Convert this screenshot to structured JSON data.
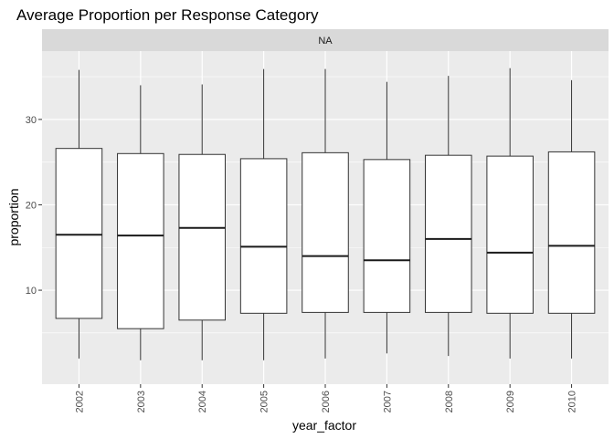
{
  "chart_data": {
    "type": "boxplot",
    "title": "Average Proportion per Response Category",
    "facet_label": "NA",
    "xlabel": "year_factor",
    "ylabel": "proportion",
    "ylim": [
      -1,
      38
    ],
    "yticks": [
      10,
      20,
      30
    ],
    "ytick_labels": [
      "10",
      "20",
      "30"
    ],
    "grid": true,
    "colors": {
      "panel_bg": "#ebebeb",
      "strip_bg": "#d9d9d9",
      "grid_major": "#ffffff",
      "box_fill": "#ffffff",
      "box_line": "#333333",
      "median_line": "#1a1a1a"
    },
    "categories": [
      "2002",
      "2003",
      "2004",
      "2005",
      "2006",
      "2007",
      "2008",
      "2009",
      "2010"
    ],
    "boxes": [
      {
        "x": "2002",
        "min": 2.0,
        "q1": 6.7,
        "median": 16.5,
        "q3": 26.6,
        "max": 35.8
      },
      {
        "x": "2003",
        "min": 1.8,
        "q1": 5.5,
        "median": 16.4,
        "q3": 26.0,
        "max": 34.0
      },
      {
        "x": "2004",
        "min": 1.8,
        "q1": 6.5,
        "median": 17.3,
        "q3": 25.9,
        "max": 34.1
      },
      {
        "x": "2005",
        "min": 1.8,
        "q1": 7.3,
        "median": 15.1,
        "q3": 25.4,
        "max": 35.9
      },
      {
        "x": "2006",
        "min": 2.0,
        "q1": 7.4,
        "median": 14.0,
        "q3": 26.1,
        "max": 35.9
      },
      {
        "x": "2007",
        "min": 2.6,
        "q1": 7.4,
        "median": 13.5,
        "q3": 25.3,
        "max": 34.4
      },
      {
        "x": "2008",
        "min": 2.3,
        "q1": 7.4,
        "median": 16.0,
        "q3": 25.8,
        "max": 35.1
      },
      {
        "x": "2009",
        "min": 2.0,
        "q1": 7.3,
        "median": 14.4,
        "q3": 25.7,
        "max": 36.0
      },
      {
        "x": "2010",
        "min": 2.0,
        "q1": 7.3,
        "median": 15.2,
        "q3": 26.2,
        "max": 34.6
      }
    ]
  }
}
